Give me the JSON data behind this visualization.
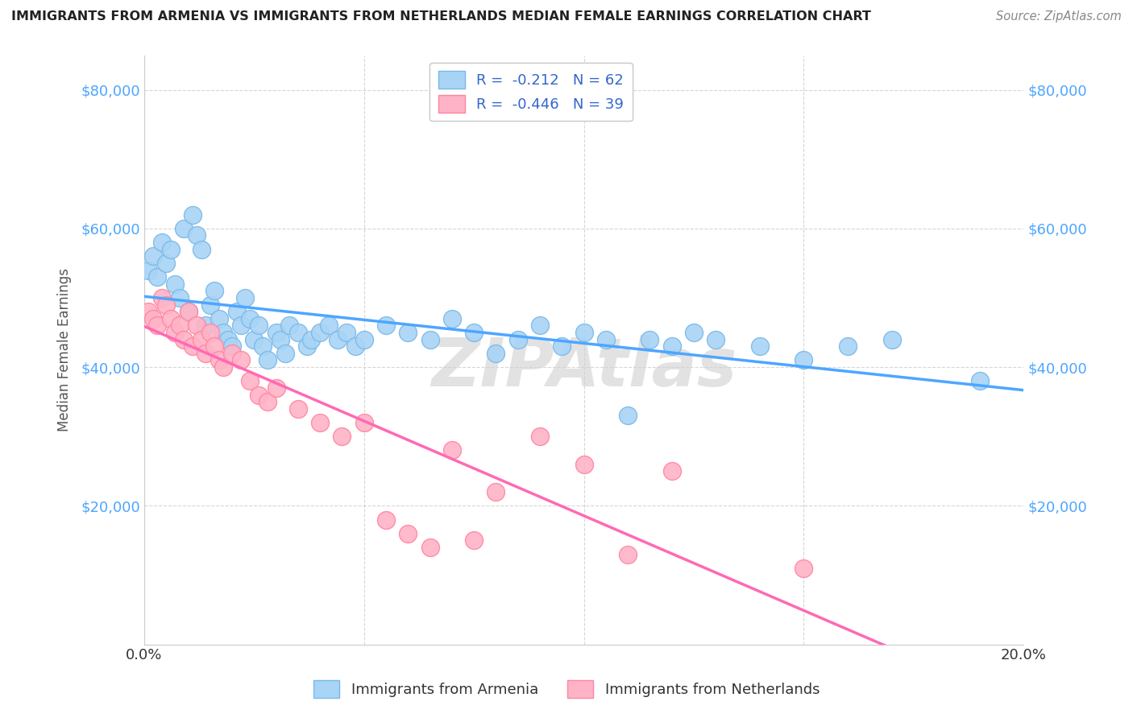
{
  "title": "IMMIGRANTS FROM ARMENIA VS IMMIGRANTS FROM NETHERLANDS MEDIAN FEMALE EARNINGS CORRELATION CHART",
  "source": "Source: ZipAtlas.com",
  "ylabel": "Median Female Earnings",
  "xlim": [
    0.0,
    0.2
  ],
  "ylim": [
    0,
    85000
  ],
  "yticks": [
    0,
    20000,
    40000,
    60000,
    80000
  ],
  "xticks": [
    0.0,
    0.05,
    0.1,
    0.15,
    0.2
  ],
  "background_color": "#ffffff",
  "grid_color": "#cccccc",
  "title_color": "#222222",
  "ylabel_color": "#555555",
  "ytick_color": "#4da6ff",
  "line_colors": [
    "#4da6ff",
    "#ff69b4"
  ],
  "armenia_color": "#a8d4f5",
  "armenia_edge": "#7ab8e8",
  "netherlands_color": "#ffb3c6",
  "netherlands_edge": "#ff85a1",
  "armenia_R": -0.212,
  "armenia_N": 62,
  "netherlands_R": -0.446,
  "netherlands_N": 39,
  "armenia_x": [
    0.001,
    0.002,
    0.003,
    0.004,
    0.005,
    0.006,
    0.007,
    0.008,
    0.009,
    0.01,
    0.011,
    0.012,
    0.013,
    0.014,
    0.015,
    0.016,
    0.017,
    0.018,
    0.019,
    0.02,
    0.021,
    0.022,
    0.023,
    0.024,
    0.025,
    0.026,
    0.027,
    0.028,
    0.03,
    0.031,
    0.032,
    0.033,
    0.035,
    0.037,
    0.038,
    0.04,
    0.042,
    0.044,
    0.046,
    0.048,
    0.05,
    0.055,
    0.06,
    0.065,
    0.07,
    0.075,
    0.08,
    0.085,
    0.09,
    0.095,
    0.1,
    0.105,
    0.11,
    0.115,
    0.12,
    0.125,
    0.13,
    0.14,
    0.15,
    0.16,
    0.17,
    0.19
  ],
  "armenia_y": [
    54000,
    56000,
    53000,
    58000,
    55000,
    57000,
    52000,
    50000,
    60000,
    48000,
    62000,
    59000,
    57000,
    46000,
    49000,
    51000,
    47000,
    45000,
    44000,
    43000,
    48000,
    46000,
    50000,
    47000,
    44000,
    46000,
    43000,
    41000,
    45000,
    44000,
    42000,
    46000,
    45000,
    43000,
    44000,
    45000,
    46000,
    44000,
    45000,
    43000,
    44000,
    46000,
    45000,
    44000,
    47000,
    45000,
    42000,
    44000,
    46000,
    43000,
    45000,
    44000,
    33000,
    44000,
    43000,
    45000,
    44000,
    43000,
    41000,
    43000,
    44000,
    38000
  ],
  "netherlands_x": [
    0.001,
    0.002,
    0.003,
    0.004,
    0.005,
    0.006,
    0.007,
    0.008,
    0.009,
    0.01,
    0.011,
    0.012,
    0.013,
    0.014,
    0.015,
    0.016,
    0.017,
    0.018,
    0.02,
    0.022,
    0.024,
    0.026,
    0.028,
    0.03,
    0.035,
    0.04,
    0.045,
    0.05,
    0.055,
    0.06,
    0.065,
    0.07,
    0.075,
    0.08,
    0.09,
    0.1,
    0.11,
    0.12,
    0.15
  ],
  "netherlands_y": [
    48000,
    47000,
    46000,
    50000,
    49000,
    47000,
    45000,
    46000,
    44000,
    48000,
    43000,
    46000,
    44000,
    42000,
    45000,
    43000,
    41000,
    40000,
    42000,
    41000,
    38000,
    36000,
    35000,
    37000,
    34000,
    32000,
    30000,
    32000,
    18000,
    16000,
    14000,
    28000,
    15000,
    22000,
    30000,
    26000,
    13000,
    25000,
    11000
  ],
  "watermark_text": "ZIPAtlas",
  "watermark_color": "#d0d0d0"
}
